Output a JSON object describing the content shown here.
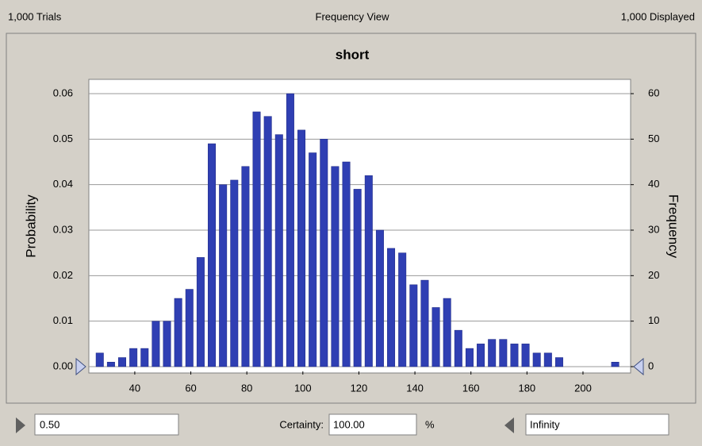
{
  "header": {
    "left": "1,000 Trials",
    "center": "Frequency View",
    "right": "1,000 Displayed"
  },
  "chart_data": {
    "type": "histogram",
    "title": "short",
    "ylabel": "Probability",
    "y2label": "Frequency",
    "bins": [
      25.5,
      29.5,
      33.5,
      37.5,
      41.5,
      45.5,
      49.5,
      53.5,
      57.5,
      61.5,
      65.5,
      69.5,
      73.5,
      77.5,
      81.5,
      85.5,
      89.5,
      93.5,
      97.5,
      101.5,
      105.5,
      109.5,
      113.5,
      117.5,
      121.5,
      125.5,
      129.5,
      133.5,
      137.5,
      141.5,
      145.5,
      149.5,
      153.5,
      157.5,
      161.5,
      165.5,
      169.5,
      173.5,
      177.5,
      181.5,
      185.5,
      189.5,
      193.5,
      197.5,
      201.5,
      205.5,
      209.5,
      213.5
    ],
    "values": [
      3,
      1,
      2,
      4,
      4,
      10,
      10,
      15,
      17,
      24,
      49,
      40,
      41,
      44,
      56,
      55,
      51,
      60,
      52,
      47,
      50,
      44,
      45,
      39,
      42,
      30,
      26,
      25,
      18,
      19,
      13,
      15,
      8,
      4,
      5,
      6,
      6,
      5,
      5,
      3,
      3,
      2,
      0,
      0,
      0,
      0,
      1
    ],
    "axis": "y2",
    "color": "#2f3fb3",
    "xlim": [
      23.6,
      217
    ],
    "xticks": [
      40,
      60,
      80,
      100,
      120,
      140,
      160,
      180,
      200
    ],
    "ylim": [
      0,
      0.06
    ],
    "yticks": [
      {
        "value": 0,
        "label": "0.00"
      },
      0.01,
      0.02,
      0.03,
      0.04,
      0.05,
      0.06
    ],
    "y2lim": [
      0,
      60
    ],
    "y2ticks": [
      0,
      10,
      20,
      30,
      40,
      50,
      60
    ],
    "grid": true
  },
  "footer": {
    "left_value": "0.50",
    "certainty_label": "Certainty:",
    "certainty_value": "100.00",
    "certainty_unit": "%",
    "right_value": "Infinity"
  }
}
